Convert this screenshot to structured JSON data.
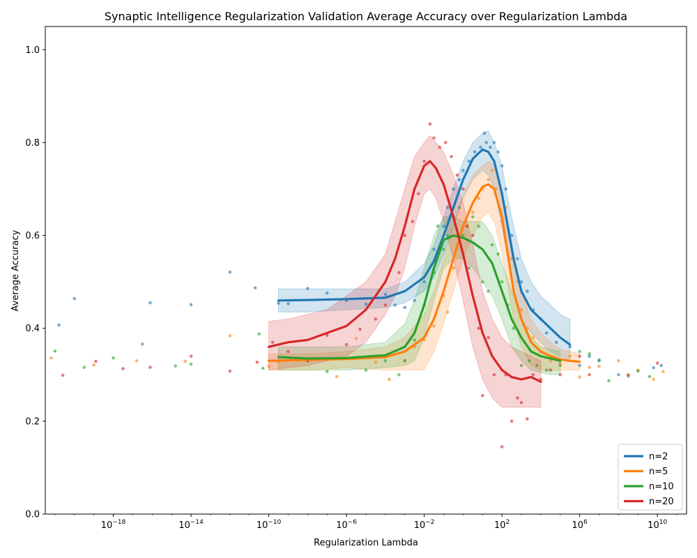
{
  "chart_data": {
    "type": "line",
    "title": "Synaptic Intelligence Regularization Validation Average Accuracy over Regularization Lambda",
    "xlabel": "Regularization Lambda",
    "ylabel": "Average Accuracy",
    "xscale": "log",
    "xlim_log10": [
      -21.5,
      11.5
    ],
    "ylim": [
      0.0,
      1.05
    ],
    "x_ticks": [
      {
        "exp": -18,
        "base": "10",
        "sup": "−18"
      },
      {
        "exp": -14,
        "base": "10",
        "sup": "−14"
      },
      {
        "exp": -10,
        "base": "10",
        "sup": "−10"
      },
      {
        "exp": -6,
        "base": "10",
        "sup": "−6"
      },
      {
        "exp": -2,
        "base": "10",
        "sup": "−2"
      },
      {
        "exp": 2,
        "base": "10",
        "sup": "2"
      },
      {
        "exp": 6,
        "base": "10",
        "sup": "6"
      },
      {
        "exp": 10,
        "base": "10",
        "sup": "10"
      }
    ],
    "y_ticks": [
      "0.0",
      "0.2",
      "0.4",
      "0.6",
      "0.8",
      "1.0"
    ],
    "legend_position": "lower-right",
    "series": [
      {
        "name": "n=2",
        "color": "#1f77b4",
        "curve_log10": [
          -9.5,
          -8,
          -6,
          -4,
          -3,
          -2,
          -1.5,
          -1,
          -0.5,
          0,
          0.5,
          1,
          1.3,
          1.6,
          2,
          2.3,
          2.6,
          3,
          3.5,
          4,
          4.5,
          5,
          5.5
        ],
        "curve": [
          0.46,
          0.461,
          0.463,
          0.466,
          0.48,
          0.51,
          0.545,
          0.6,
          0.66,
          0.72,
          0.765,
          0.785,
          0.78,
          0.76,
          0.69,
          0.62,
          0.55,
          0.48,
          0.44,
          0.42,
          0.4,
          0.38,
          0.365
        ],
        "band_upper": [
          0.485,
          0.485,
          0.485,
          0.485,
          0.5,
          0.54,
          0.58,
          0.64,
          0.7,
          0.76,
          0.8,
          0.82,
          0.825,
          0.8,
          0.75,
          0.68,
          0.62,
          0.55,
          0.5,
          0.47,
          0.45,
          0.43,
          0.42
        ],
        "band_lower": [
          0.435,
          0.435,
          0.44,
          0.445,
          0.455,
          0.48,
          0.51,
          0.56,
          0.62,
          0.68,
          0.72,
          0.74,
          0.73,
          0.7,
          0.62,
          0.55,
          0.48,
          0.42,
          0.39,
          0.37,
          0.35,
          0.34,
          0.33
        ],
        "scatter": [
          [
            -20.8,
            0.407
          ],
          [
            -20.0,
            0.464
          ],
          [
            -16.1,
            0.455
          ],
          [
            -14.0,
            0.451
          ],
          [
            -12.0,
            0.521
          ],
          [
            -10.7,
            0.487
          ],
          [
            -9.5,
            0.454
          ],
          [
            -9.0,
            0.453
          ],
          [
            -8.0,
            0.486
          ],
          [
            -7.0,
            0.476
          ],
          [
            -6.0,
            0.46
          ],
          [
            -5.0,
            0.452
          ],
          [
            -4.0,
            0.473
          ],
          [
            -3.5,
            0.45
          ],
          [
            -3.0,
            0.445
          ],
          [
            -2.5,
            0.46
          ],
          [
            -2.0,
            0.5
          ],
          [
            -1.5,
            0.57
          ],
          [
            -1.0,
            0.62
          ],
          [
            -0.8,
            0.66
          ],
          [
            -0.5,
            0.7
          ],
          [
            -0.2,
            0.72
          ],
          [
            0.0,
            0.74
          ],
          [
            0.3,
            0.76
          ],
          [
            0.6,
            0.78
          ],
          [
            0.9,
            0.79
          ],
          [
            1.1,
            0.82
          ],
          [
            1.2,
            0.8
          ],
          [
            1.4,
            0.79
          ],
          [
            1.6,
            0.8
          ],
          [
            1.8,
            0.78
          ],
          [
            2.0,
            0.75
          ],
          [
            2.2,
            0.7
          ],
          [
            2.5,
            0.6
          ],
          [
            2.8,
            0.55
          ],
          [
            3.0,
            0.5
          ],
          [
            3.3,
            0.48
          ],
          [
            3.6,
            0.44
          ],
          [
            4.0,
            0.42
          ],
          [
            4.3,
            0.39
          ],
          [
            4.8,
            0.37
          ],
          [
            5.5,
            0.36
          ],
          [
            6.5,
            0.34
          ],
          [
            7.0,
            0.33
          ],
          [
            8.0,
            0.3
          ],
          [
            9.8,
            0.315
          ],
          [
            10.2,
            0.32
          ],
          [
            6.0,
            0.32
          ]
        ]
      },
      {
        "name": "n=5",
        "color": "#ff7f0e",
        "curve_log10": [
          -10,
          -8,
          -6,
          -4,
          -3,
          -2,
          -1.5,
          -1,
          -0.5,
          0,
          0.5,
          1,
          1.3,
          1.6,
          2,
          2.3,
          2.6,
          3,
          3.5,
          4,
          4.5,
          5,
          5.5,
          6
        ],
        "curve": [
          0.33,
          0.332,
          0.334,
          0.338,
          0.35,
          0.38,
          0.42,
          0.48,
          0.55,
          0.62,
          0.67,
          0.705,
          0.71,
          0.7,
          0.64,
          0.56,
          0.48,
          0.42,
          0.37,
          0.35,
          0.34,
          0.333,
          0.33,
          0.328
        ],
        "band_upper": [
          0.345,
          0.345,
          0.35,
          0.36,
          0.38,
          0.43,
          0.48,
          0.55,
          0.62,
          0.69,
          0.73,
          0.75,
          0.76,
          0.75,
          0.7,
          0.62,
          0.54,
          0.48,
          0.42,
          0.39,
          0.37,
          0.355,
          0.35,
          0.345
        ],
        "band_lower": [
          0.31,
          0.31,
          0.315,
          0.31,
          0.31,
          0.31,
          0.35,
          0.41,
          0.48,
          0.55,
          0.6,
          0.64,
          0.65,
          0.63,
          0.56,
          0.49,
          0.42,
          0.36,
          0.32,
          0.31,
          0.31,
          0.31,
          0.31,
          0.31
        ],
        "scatter": [
          [
            -21.2,
            0.336
          ],
          [
            -19.0,
            0.321
          ],
          [
            -16.8,
            0.33
          ],
          [
            -14.3,
            0.329
          ],
          [
            -12.0,
            0.384
          ],
          [
            -10.0,
            0.318
          ],
          [
            -9.5,
            0.328
          ],
          [
            -8.0,
            0.33
          ],
          [
            -6.5,
            0.296
          ],
          [
            -5.5,
            0.378
          ],
          [
            -4.5,
            0.327
          ],
          [
            -3.8,
            0.29
          ],
          [
            -3.0,
            0.33
          ],
          [
            -2.5,
            0.36
          ],
          [
            -2.0,
            0.375
          ],
          [
            -1.5,
            0.405
          ],
          [
            -1.0,
            0.47
          ],
          [
            -0.8,
            0.435
          ],
          [
            -0.5,
            0.53
          ],
          [
            -0.2,
            0.6
          ],
          [
            0.2,
            0.62
          ],
          [
            0.5,
            0.65
          ],
          [
            0.8,
            0.68
          ],
          [
            1.0,
            0.7
          ],
          [
            1.3,
            0.72
          ],
          [
            1.5,
            0.74
          ],
          [
            1.7,
            0.7
          ],
          [
            2.0,
            0.63
          ],
          [
            2.2,
            0.66
          ],
          [
            2.5,
            0.55
          ],
          [
            2.8,
            0.5
          ],
          [
            3.0,
            0.44
          ],
          [
            3.3,
            0.4
          ],
          [
            3.6,
            0.38
          ],
          [
            4.0,
            0.35
          ],
          [
            4.5,
            0.33
          ],
          [
            5.0,
            0.325
          ],
          [
            6.0,
            0.295
          ],
          [
            6.5,
            0.316
          ],
          [
            7.0,
            0.318
          ],
          [
            8.0,
            0.33
          ],
          [
            9.0,
            0.31
          ],
          [
            9.8,
            0.29
          ],
          [
            10.3,
            0.307
          ],
          [
            5.5,
            0.34
          ]
        ]
      },
      {
        "name": "n=10",
        "color": "#2ca02c",
        "curve_log10": [
          -9.5,
          -8,
          -6,
          -4,
          -3,
          -2.5,
          -2,
          -1.5,
          -1,
          -0.5,
          0,
          0.5,
          1,
          1.5,
          2,
          2.5,
          3,
          3.5,
          4,
          4.5,
          5
        ],
        "curve": [
          0.338,
          0.335,
          0.336,
          0.342,
          0.36,
          0.39,
          0.45,
          0.53,
          0.59,
          0.6,
          0.595,
          0.585,
          0.57,
          0.54,
          0.48,
          0.42,
          0.38,
          0.35,
          0.34,
          0.335,
          0.33
        ],
        "band_upper": [
          0.36,
          0.36,
          0.36,
          0.37,
          0.41,
          0.46,
          0.53,
          0.6,
          0.64,
          0.64,
          0.63,
          0.63,
          0.63,
          0.6,
          0.54,
          0.48,
          0.42,
          0.38,
          0.36,
          0.355,
          0.35
        ],
        "band_lower": [
          0.31,
          0.31,
          0.31,
          0.315,
          0.32,
          0.33,
          0.38,
          0.46,
          0.53,
          0.55,
          0.55,
          0.53,
          0.5,
          0.47,
          0.42,
          0.36,
          0.33,
          0.31,
          0.305,
          0.3,
          0.3
        ],
        "scatter": [
          [
            -21.0,
            0.351
          ],
          [
            -19.5,
            0.316
          ],
          [
            -18.0,
            0.336
          ],
          [
            -16.5,
            0.366
          ],
          [
            -14.8,
            0.319
          ],
          [
            -14.0,
            0.323
          ],
          [
            -10.5,
            0.388
          ],
          [
            -10.3,
            0.314
          ],
          [
            -8.0,
            0.33
          ],
          [
            -7.0,
            0.307
          ],
          [
            -5.0,
            0.31
          ],
          [
            -4.0,
            0.33
          ],
          [
            -3.3,
            0.3
          ],
          [
            -3.0,
            0.33
          ],
          [
            -2.5,
            0.375
          ],
          [
            -2.0,
            0.45
          ],
          [
            -1.5,
            0.52
          ],
          [
            -1.3,
            0.62
          ],
          [
            -1.0,
            0.57
          ],
          [
            -0.8,
            0.6
          ],
          [
            -0.5,
            0.64
          ],
          [
            -0.2,
            0.66
          ],
          [
            0.0,
            0.6
          ],
          [
            0.3,
            0.53
          ],
          [
            0.5,
            0.64
          ],
          [
            0.8,
            0.62
          ],
          [
            1.0,
            0.5
          ],
          [
            1.3,
            0.48
          ],
          [
            1.5,
            0.58
          ],
          [
            1.8,
            0.56
          ],
          [
            2.0,
            0.5
          ],
          [
            2.3,
            0.45
          ],
          [
            2.6,
            0.4
          ],
          [
            3.0,
            0.32
          ],
          [
            3.4,
            0.33
          ],
          [
            3.8,
            0.32
          ],
          [
            4.3,
            0.31
          ],
          [
            5.0,
            0.32
          ],
          [
            6.0,
            0.35
          ],
          [
            7.0,
            0.332
          ],
          [
            7.5,
            0.287
          ],
          [
            8.5,
            0.297
          ],
          [
            9.0,
            0.308
          ],
          [
            9.6,
            0.296
          ],
          [
            6.5,
            0.345
          ]
        ]
      },
      {
        "name": "n=20",
        "color": "#d62728",
        "curve_log10": [
          -10,
          -9,
          -8,
          -7,
          -6,
          -5,
          -4,
          -3.5,
          -3,
          -2.5,
          -2,
          -1.7,
          -1.4,
          -1,
          -0.5,
          0,
          0.5,
          1,
          1.5,
          2,
          2.5,
          3,
          3.5,
          4
        ],
        "curve": [
          0.36,
          0.37,
          0.375,
          0.39,
          0.405,
          0.44,
          0.5,
          0.55,
          0.62,
          0.7,
          0.75,
          0.76,
          0.745,
          0.71,
          0.64,
          0.56,
          0.47,
          0.39,
          0.34,
          0.31,
          0.295,
          0.29,
          0.295,
          0.285
        ],
        "band_upper": [
          0.415,
          0.42,
          0.43,
          0.44,
          0.47,
          0.5,
          0.56,
          0.63,
          0.7,
          0.77,
          0.8,
          0.815,
          0.8,
          0.78,
          0.73,
          0.67,
          0.58,
          0.48,
          0.42,
          0.38,
          0.36,
          0.35,
          0.34,
          0.33
        ],
        "band_lower": [
          0.31,
          0.315,
          0.32,
          0.33,
          0.34,
          0.37,
          0.43,
          0.47,
          0.53,
          0.62,
          0.69,
          0.7,
          0.68,
          0.63,
          0.55,
          0.46,
          0.36,
          0.29,
          0.25,
          0.23,
          0.23,
          0.23,
          0.23,
          0.23
        ],
        "scatter": [
          [
            -20.6,
            0.299
          ],
          [
            -18.9,
            0.329
          ],
          [
            -17.5,
            0.313
          ],
          [
            -16.1,
            0.316
          ],
          [
            -14.0,
            0.34
          ],
          [
            -12.0,
            0.308
          ],
          [
            -10.6,
            0.327
          ],
          [
            -9.8,
            0.37
          ],
          [
            -9.0,
            0.35
          ],
          [
            -8.0,
            0.33
          ],
          [
            -7.0,
            0.385
          ],
          [
            -6.0,
            0.365
          ],
          [
            -5.3,
            0.398
          ],
          [
            -4.5,
            0.42
          ],
          [
            -4.0,
            0.45
          ],
          [
            -3.3,
            0.52
          ],
          [
            -3.0,
            0.6
          ],
          [
            -2.6,
            0.63
          ],
          [
            -2.3,
            0.69
          ],
          [
            -2.0,
            0.76
          ],
          [
            -1.7,
            0.84
          ],
          [
            -1.5,
            0.81
          ],
          [
            -1.2,
            0.79
          ],
          [
            -0.9,
            0.8
          ],
          [
            -0.6,
            0.77
          ],
          [
            -0.3,
            0.73
          ],
          [
            0.0,
            0.7
          ],
          [
            0.2,
            0.62
          ],
          [
            0.5,
            0.6
          ],
          [
            0.8,
            0.4
          ],
          [
            1.0,
            0.255
          ],
          [
            1.3,
            0.38
          ],
          [
            1.6,
            0.3
          ],
          [
            2.0,
            0.145
          ],
          [
            2.2,
            0.3
          ],
          [
            2.5,
            0.2
          ],
          [
            2.8,
            0.25
          ],
          [
            3.0,
            0.24
          ],
          [
            3.3,
            0.205
          ],
          [
            3.6,
            0.3
          ],
          [
            4.0,
            0.29
          ],
          [
            4.5,
            0.31
          ],
          [
            5.0,
            0.3
          ],
          [
            6.0,
            0.34
          ],
          [
            6.5,
            0.3
          ],
          [
            8.5,
            0.3
          ],
          [
            10.0,
            0.325
          ]
        ]
      }
    ]
  }
}
